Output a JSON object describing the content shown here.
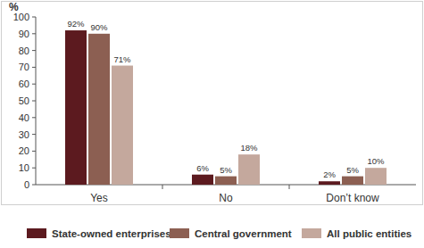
{
  "chart_data": {
    "type": "bar",
    "y_label": "%",
    "categories": [
      "Yes",
      "No",
      "Don’t know"
    ],
    "series": [
      {
        "name": "State-owned enterprises",
        "color": "#5c1a1f",
        "values": [
          92,
          6,
          2
        ],
        "value_labels": [
          "92%",
          "6%",
          "2%"
        ]
      },
      {
        "name": "Central government",
        "color": "#8c5f52",
        "values": [
          90,
          5,
          5
        ],
        "value_labels": [
          "90%",
          "5%",
          "5%"
        ]
      },
      {
        "name": "All public entities",
        "color": "#c4a89d",
        "values": [
          71,
          18,
          10
        ],
        "value_labels": [
          "71%",
          "18%",
          "10%"
        ]
      }
    ],
    "ylim": [
      0,
      100
    ],
    "yticks": [
      0,
      10,
      20,
      30,
      40,
      50,
      60,
      70,
      80,
      90,
      100
    ],
    "grid": false,
    "legend": "bottom",
    "data_labels": true
  }
}
